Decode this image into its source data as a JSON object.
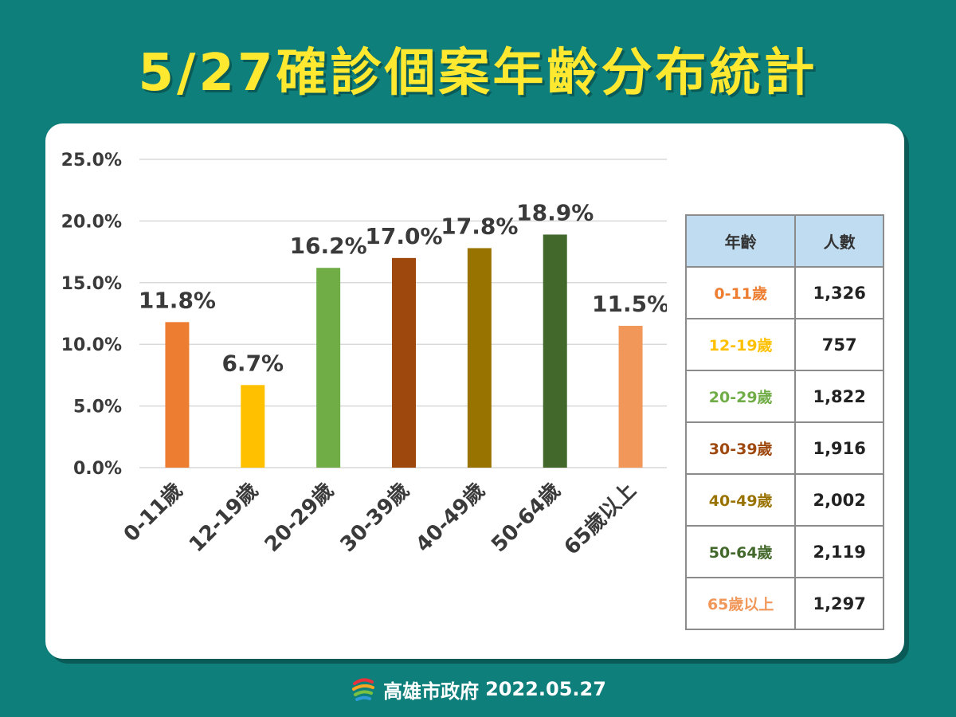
{
  "title": "5/27確診個案年齡分布統計",
  "chart_data": {
    "type": "bar",
    "categories": [
      "0-11歲",
      "12-19歲",
      "20-29歲",
      "30-39歲",
      "40-49歲",
      "50-64歲",
      "65歲以上"
    ],
    "values": [
      11.8,
      6.7,
      16.2,
      17.0,
      17.8,
      18.9,
      11.5
    ],
    "data_labels": [
      "11.8%",
      "6.7%",
      "16.2%",
      "17.0%",
      "17.8%",
      "18.9%",
      "11.5%"
    ],
    "colors": [
      "#ed7d31",
      "#ffc000",
      "#70ad47",
      "#9e480e",
      "#997300",
      "#43682b",
      "#f1975a"
    ],
    "y_ticks": [
      0,
      5,
      10,
      15,
      20,
      25
    ],
    "y_tick_labels": [
      "0.0%",
      "5.0%",
      "10.0%",
      "15.0%",
      "20.0%",
      "25.0%"
    ],
    "ylim": [
      0,
      25
    ],
    "grid": true,
    "title": "",
    "xlabel": "",
    "ylabel": ""
  },
  "table": {
    "headers": [
      "年齡",
      "人數"
    ],
    "rows": [
      {
        "age": "0-11歲",
        "count": "1,326",
        "color": "#ed7d31"
      },
      {
        "age": "12-19歲",
        "count": "757",
        "color": "#ffc000"
      },
      {
        "age": "20-29歲",
        "count": "1,822",
        "color": "#70ad47"
      },
      {
        "age": "30-39歲",
        "count": "1,916",
        "color": "#9e480e"
      },
      {
        "age": "40-49歲",
        "count": "2,002",
        "color": "#997300"
      },
      {
        "age": "50-64歲",
        "count": "2,119",
        "color": "#43682b"
      },
      {
        "age": "65歲以上",
        "count": "1,297",
        "color": "#f1975a"
      }
    ]
  },
  "footer": {
    "org": "高雄市政府",
    "date": "2022.05.27",
    "logo_icon": "kaohsiung-logo-icon"
  }
}
